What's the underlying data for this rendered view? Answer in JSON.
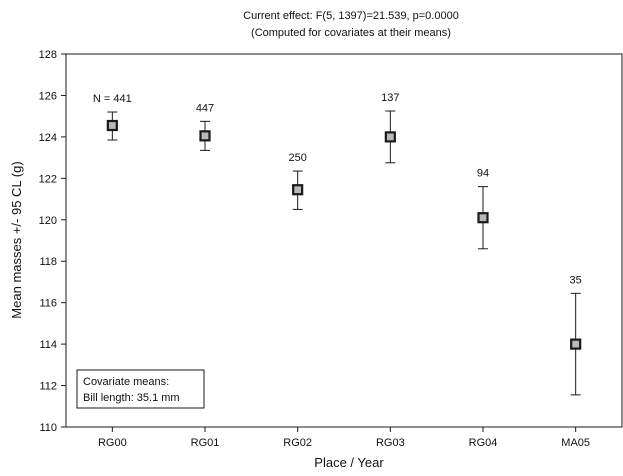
{
  "chart_data": {
    "type": "scatter",
    "title": "Current effect: F(5, 1397)=21.539, p=0.0000",
    "subtitle": "(Computed for covariates at their means)",
    "xlabel": "Place / Year",
    "ylabel": "Mean masses +/- 95 CL (g)",
    "ylim": [
      110,
      128
    ],
    "yticks": [
      110,
      112,
      114,
      116,
      118,
      120,
      122,
      124,
      126,
      128
    ],
    "grid": false,
    "categories": [
      "RG00",
      "RG01",
      "RG02",
      "RG03",
      "RG04",
      "MA05"
    ],
    "series": [
      {
        "values": [
          124.55,
          124.05,
          121.45,
          124.0,
          120.1,
          114.0
        ],
        "ci_low": [
          123.85,
          123.35,
          120.5,
          122.75,
          118.6,
          111.55
        ],
        "ci_high": [
          125.2,
          124.75,
          122.35,
          125.25,
          121.6,
          116.45
        ],
        "n_labels": [
          "N = 441",
          "447",
          "250",
          "137",
          "94",
          "35"
        ]
      }
    ],
    "annotation": {
      "line1": "Covariate means:",
      "line2": "Bill length: 35.1 mm"
    },
    "colors": {
      "marker_fill": "#b8b8b8",
      "marker_stroke": "#1a1a1a",
      "errorbar": "#1a1a1a",
      "axis": "#1a1a1a"
    }
  }
}
